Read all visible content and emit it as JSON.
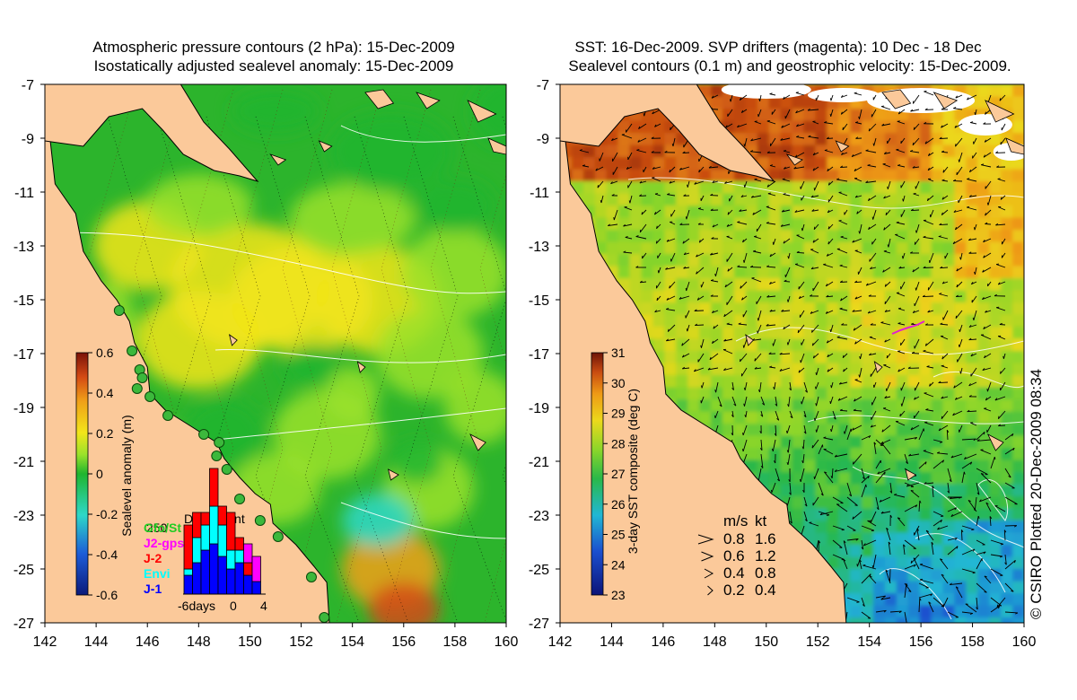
{
  "left_panel": {
    "title_line1": "Atmospheric pressure contours (2 hPa): 15-Dec-2009",
    "title_line2": "Isostatically adjusted sealevel anomaly: 15-Dec-2009",
    "colorbar_label": "Sealevel anomaly (m)",
    "colorbar_ticks": [
      "0.6",
      "0.4",
      "0.2",
      "0",
      "-0.2",
      "-0.4",
      "-0.6"
    ],
    "inset": {
      "title": "Data count",
      "count_label": "250",
      "legend": [
        {
          "label": "Gfo/St",
          "color": "#22cc22"
        },
        {
          "label": "J2-gps",
          "color": "#ff00ff"
        },
        {
          "label": "J-2",
          "color": "#ff0000"
        },
        {
          "label": "Envi",
          "color": "#00ffff"
        },
        {
          "label": "J-1",
          "color": "#0000ff"
        }
      ],
      "x_ticks": [
        "-6days",
        "0",
        "4"
      ],
      "bars": [
        {
          "j1": 0.15,
          "envi": 0.05,
          "j2": 0.35,
          "gps": 0
        },
        {
          "j1": 0.25,
          "envi": 0.2,
          "j2": 0.2,
          "gps": 0
        },
        {
          "j1": 0.35,
          "envi": 0.2,
          "j2": 0.1,
          "gps": 0
        },
        {
          "j1": 0.4,
          "envi": 0.3,
          "j2": 0.3,
          "gps": 0
        },
        {
          "j1": 0.3,
          "envi": 0.25,
          "j2": 0.15,
          "gps": 0
        },
        {
          "j1": 0.2,
          "envi": 0.15,
          "j2": 0.3,
          "gps": 0
        },
        {
          "j1": 0.25,
          "envi": 0.1,
          "j2": 0.1,
          "gps": 0
        },
        {
          "j1": 0.15,
          "envi": 0,
          "j2": 0.1,
          "gps": 0.15
        },
        {
          "j1": 0.1,
          "envi": 0,
          "j2": 0,
          "gps": 0.2
        }
      ]
    }
  },
  "right_panel": {
    "title_line1": "SST: 16-Dec-2009. SVP drifters (magenta): 10 Dec - 18 Dec",
    "title_line2": "Sealevel contours (0.1 m) and geostrophic velocity: 15-Dec-2009.",
    "colorbar_label": "3-day SST composite (deg C)",
    "colorbar_ticks": [
      "31",
      "30",
      "29",
      "28",
      "27",
      "26",
      "25",
      "24",
      "23"
    ],
    "velocity_key": {
      "header_ms": "m/s",
      "header_kt": "kt",
      "rows": [
        {
          "ms": "0.8",
          "kt": "1.6"
        },
        {
          "ms": "0.6",
          "kt": "1.2"
        },
        {
          "ms": "0.4",
          "kt": "0.8"
        },
        {
          "ms": "0.2",
          "kt": "0.4"
        }
      ]
    }
  },
  "axes": {
    "lat_ticks": [
      "-7",
      "-9",
      "-11",
      "-13",
      "-15",
      "-17",
      "-19",
      "-21",
      "-23",
      "-25",
      "-27"
    ],
    "lon_ticks": [
      "142",
      "144",
      "146",
      "148",
      "150",
      "152",
      "154",
      "156",
      "158",
      "160"
    ],
    "lon_range": [
      142,
      160
    ],
    "lat_range": [
      -27,
      -7
    ]
  },
  "credit": "© CSIRO Plotted 20-Dec-2009 08:34",
  "colors": {
    "land": "#fbc99a",
    "sealevel_palette": [
      "#0c1a7a",
      "#1c5cd8",
      "#2ed8c8",
      "#1fb52e",
      "#9be22a",
      "#f2e51a",
      "#f0a018",
      "#d44a14",
      "#7a1208"
    ],
    "sst_palette": [
      "#0c1478",
      "#1b4fcf",
      "#21b7d4",
      "#29b849",
      "#8bd62a",
      "#ecd81c",
      "#ee9a15",
      "#c94c11",
      "#6e1407"
    ],
    "drifter": "#e020d0"
  }
}
